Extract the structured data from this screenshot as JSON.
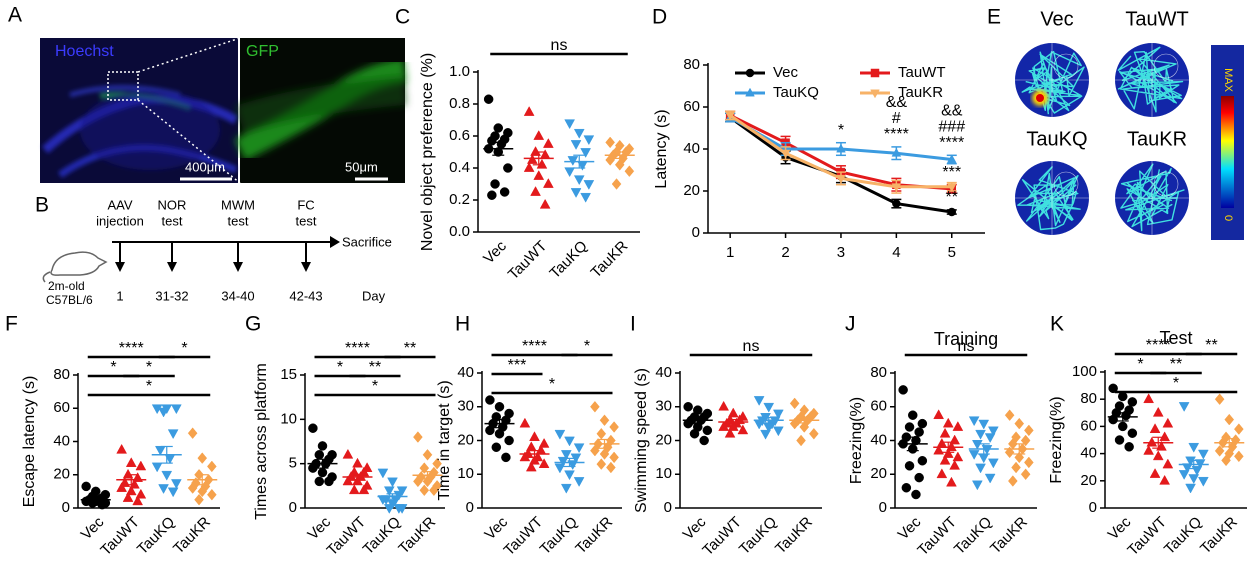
{
  "chart_data": [
    {
      "type": "dotplot",
      "panel_label": "C",
      "ylabel": "Novel object preference (%)",
      "categories": [
        "Vec",
        "TauWT",
        "TauKQ",
        "TauKR"
      ],
      "groups": [
        {
          "color": "#000000",
          "marker": "circle",
          "values": [
            0.83,
            0.65,
            0.62,
            0.6,
            0.58,
            0.57,
            0.55,
            0.52,
            0.5,
            0.4,
            0.3,
            0.25,
            0.23
          ],
          "mean": 0.52,
          "error": 0.04
        },
        {
          "color": "#e31a1c",
          "marker": "triangle-up",
          "values": [
            0.75,
            0.6,
            0.55,
            0.5,
            0.48,
            0.45,
            0.42,
            0.4,
            0.35,
            0.3,
            0.25,
            0.17
          ],
          "mean": 0.46,
          "error": 0.04
        },
        {
          "color": "#3b9be0",
          "marker": "triangle-down",
          "values": [
            0.68,
            0.62,
            0.58,
            0.55,
            0.5,
            0.45,
            0.42,
            0.38,
            0.33,
            0.3,
            0.25,
            0.22
          ],
          "mean": 0.44,
          "error": 0.04
        },
        {
          "color": "#f6a24c",
          "marker": "diamond",
          "values": [
            0.56,
            0.54,
            0.52,
            0.5,
            0.5,
            0.48,
            0.46,
            0.45,
            0.42,
            0.38,
            0.3
          ],
          "mean": 0.48,
          "error": 0.02
        }
      ],
      "ylim": [
        0,
        1
      ],
      "yticks": [
        {
          "value": 0,
          "label": "0.0"
        },
        {
          "value": 0.2,
          "label": "0.2"
        },
        {
          "value": 0.4,
          "label": "0.4"
        },
        {
          "value": 0.6,
          "label": "0.6"
        },
        {
          "value": 0.8,
          "label": "0.8"
        },
        {
          "value": 1,
          "label": "1.0"
        }
      ],
      "brackets": [
        {
          "from": 0,
          "to": 3,
          "label": "ns"
        }
      ]
    },
    {
      "type": "line",
      "panel_label": "D",
      "ylabel": "Latency (s)",
      "x": [
        1,
        2,
        3,
        4,
        5
      ],
      "xlim": [
        0.6,
        5.6
      ],
      "xticks": [
        1,
        2,
        3,
        4,
        5
      ],
      "ylim": [
        0,
        80
      ],
      "yticks": [
        0,
        20,
        40,
        60,
        80
      ],
      "legend": "top-right",
      "series": [
        {
          "name": "Vec",
          "color": "#000000",
          "marker": "circle",
          "values": [
            55,
            36,
            27,
            14,
            10
          ],
          "errors": [
            2,
            3,
            3,
            2,
            1
          ]
        },
        {
          "name": "TauWT",
          "color": "#e31a1c",
          "marker": "square",
          "values": [
            56,
            43,
            29,
            23,
            21
          ],
          "errors": [
            2,
            3,
            3,
            3,
            2
          ]
        },
        {
          "name": "TauKQ",
          "color": "#3b9be0",
          "marker": "triangle-up",
          "values": [
            55,
            40,
            40,
            38,
            35
          ],
          "errors": [
            2,
            3,
            3,
            3,
            2
          ]
        },
        {
          "name": "TauKR",
          "color": "#f7b267",
          "marker": "triangle-down",
          "values": [
            56,
            38,
            26,
            22,
            22
          ],
          "errors": [
            2,
            3,
            3,
            3,
            2
          ]
        }
      ],
      "annotations": [
        {
          "x": 3,
          "series": 2,
          "labels": [
            "*"
          ]
        },
        {
          "x": 4,
          "series": 2,
          "labels": [
            "&&",
            "#",
            "****"
          ]
        },
        {
          "x": 5,
          "series": 2,
          "labels": [
            "&&",
            "###",
            "****"
          ]
        },
        {
          "x": 5,
          "series": 1,
          "labels": [
            "***"
          ]
        },
        {
          "x": 5,
          "series": 0,
          "labels": [
            "**"
          ]
        }
      ]
    },
    {
      "type": "dotplot",
      "panel_label": "F",
      "ylabel": "Escape latency (s)",
      "categories": [
        "Vec",
        "TauWT",
        "TauKQ",
        "TauKR"
      ],
      "groups": [
        {
          "color": "#000000",
          "marker": "circle",
          "values": [
            13,
            10,
            8,
            7,
            6,
            5,
            5,
            4,
            4,
            3,
            3,
            2
          ],
          "mean": 5,
          "error": 1
        },
        {
          "color": "#e31a1c",
          "marker": "triangle-up",
          "values": [
            35,
            27,
            25,
            20,
            18,
            15,
            14,
            12,
            10,
            8,
            6,
            4
          ],
          "mean": 17,
          "error": 3
        },
        {
          "color": "#3b9be0",
          "marker": "triangle-down",
          "values": [
            60,
            60,
            60,
            58,
            45,
            35,
            30,
            25,
            20,
            15,
            12,
            10
          ],
          "mean": 32,
          "error": 5
        },
        {
          "color": "#f6a24c",
          "marker": "diamond",
          "values": [
            45,
            30,
            25,
            20,
            17,
            15,
            13,
            12,
            10,
            8,
            5
          ],
          "mean": 17,
          "error": 3
        }
      ],
      "ylim": [
        0,
        80
      ],
      "yticks": [
        0,
        20,
        40,
        60,
        80
      ],
      "brackets": [
        {
          "from": 0,
          "to": 2,
          "label": "****"
        },
        {
          "from": 0,
          "to": 1,
          "label": "*"
        },
        {
          "from": 1,
          "to": 2,
          "label": "*"
        },
        {
          "from": 2,
          "to": 3,
          "label": "*"
        },
        {
          "from": 0,
          "to": 3,
          "label": "*"
        }
      ]
    },
    {
      "type": "dotplot",
      "panel_label": "G",
      "ylabel": "Times across platform",
      "categories": [
        "Vec",
        "TauWT",
        "TauKQ",
        "TauKR"
      ],
      "groups": [
        {
          "color": "#000000",
          "marker": "circle",
          "values": [
            9,
            7,
            6,
            6,
            5.5,
            5,
            5,
            4.5,
            4,
            3.5,
            3,
            3
          ],
          "mean": 5,
          "error": 0.5
        },
        {
          "color": "#e31a1c",
          "marker": "triangle-up",
          "values": [
            6,
            5,
            4.5,
            4,
            4,
            3.5,
            3.5,
            3,
            3,
            2.5,
            2,
            2
          ],
          "mean": 3.5,
          "error": 0.3
        },
        {
          "color": "#3b9be0",
          "marker": "triangle-down",
          "values": [
            4,
            3,
            2,
            2,
            1.5,
            1,
            1,
            1,
            0.5,
            0,
            0,
            0
          ],
          "mean": 1.3,
          "error": 0.3
        },
        {
          "color": "#f6a24c",
          "marker": "diamond",
          "values": [
            8,
            6,
            5,
            4.5,
            4,
            3.5,
            3.5,
            3,
            3,
            2.5,
            2,
            2
          ],
          "mean": 3.7,
          "error": 0.4
        }
      ],
      "ylim": [
        0,
        15
      ],
      "yticks": [
        0,
        5,
        10,
        15
      ],
      "brackets": [
        {
          "from": 0,
          "to": 2,
          "label": "****"
        },
        {
          "from": 0,
          "to": 1,
          "label": "*"
        },
        {
          "from": 1,
          "to": 2,
          "label": "**"
        },
        {
          "from": 2,
          "to": 3,
          "label": "**"
        },
        {
          "from": 0,
          "to": 3,
          "label": "*"
        }
      ]
    },
    {
      "type": "dotplot",
      "panel_label": "H",
      "ylabel": "Time in target (s)",
      "categories": [
        "Vec",
        "TauWT",
        "TauKQ",
        "TauKR"
      ],
      "groups": [
        {
          "color": "#000000",
          "marker": "circle",
          "values": [
            32,
            30,
            28,
            27,
            26,
            25,
            24,
            23,
            22,
            20,
            18,
            15
          ],
          "mean": 25,
          "error": 1.2
        },
        {
          "color": "#e31a1c",
          "marker": "triangle-up",
          "values": [
            25,
            21,
            19,
            18,
            17,
            16,
            15,
            15,
            14,
            13,
            12
          ],
          "mean": 16,
          "error": 1
        },
        {
          "color": "#3b9be0",
          "marker": "triangle-down",
          "values": [
            22,
            20,
            18,
            16,
            15,
            14,
            13,
            12,
            10,
            8,
            6
          ],
          "mean": 13.5,
          "error": 1.2
        },
        {
          "color": "#f6a24c",
          "marker": "diamond",
          "values": [
            30,
            26,
            24,
            22,
            20,
            19,
            18,
            17,
            16,
            15,
            13,
            12
          ],
          "mean": 19,
          "error": 1.3
        }
      ],
      "ylim": [
        0,
        40
      ],
      "yticks": [
        0,
        10,
        20,
        30,
        40
      ],
      "brackets": [
        {
          "from": 0,
          "to": 2,
          "label": "****"
        },
        {
          "from": 0,
          "to": 1,
          "label": "***"
        },
        {
          "from": 2,
          "to": 3,
          "label": "*"
        },
        {
          "from": 0,
          "to": 3,
          "label": "*"
        }
      ]
    },
    {
      "type": "dotplot",
      "panel_label": "I",
      "ylabel": "Swimming speed (s)",
      "categories": [
        "Vec",
        "TauWT",
        "TauKQ",
        "TauKR"
      ],
      "groups": [
        {
          "color": "#000000",
          "marker": "circle",
          "values": [
            30,
            29,
            28,
            27,
            27,
            26,
            26,
            25,
            24,
            23,
            22,
            20
          ],
          "mean": 26,
          "error": 0.8
        },
        {
          "color": "#e31a1c",
          "marker": "triangle-up",
          "values": [
            30,
            28,
            27,
            26,
            26,
            25,
            25,
            24,
            24,
            23,
            22
          ],
          "mean": 25.5,
          "error": 0.7
        },
        {
          "color": "#3b9be0",
          "marker": "triangle-down",
          "values": [
            32,
            30,
            28,
            27,
            26,
            26,
            25,
            25,
            24,
            23,
            22
          ],
          "mean": 26,
          "error": 0.8
        },
        {
          "color": "#f6a24c",
          "marker": "diamond",
          "values": [
            31,
            29,
            28,
            27,
            27,
            26,
            26,
            25,
            24,
            22,
            20
          ],
          "mean": 26,
          "error": 0.8
        }
      ],
      "ylim": [
        0,
        40
      ],
      "yticks": [
        0,
        10,
        20,
        30,
        40
      ],
      "brackets": [
        {
          "from": 0,
          "to": 3,
          "label": "ns"
        }
      ]
    },
    {
      "type": "dotplot",
      "panel_label": "J",
      "title": "Training",
      "ylabel": "Freezing(%)",
      "categories": [
        "Vec",
        "TauWT",
        "TauKQ",
        "TauKR"
      ],
      "groups": [
        {
          "color": "#000000",
          "marker": "circle",
          "values": [
            70,
            55,
            50,
            48,
            45,
            42,
            40,
            38,
            35,
            28,
            25,
            18,
            12,
            8
          ],
          "mean": 38,
          "error": 4
        },
        {
          "color": "#e31a1c",
          "marker": "triangle-up",
          "values": [
            55,
            50,
            48,
            44,
            40,
            38,
            36,
            34,
            32,
            30,
            28,
            25,
            20,
            15
          ],
          "mean": 36,
          "error": 3
        },
        {
          "color": "#3b9be0",
          "marker": "triangle-down",
          "values": [
            52,
            50,
            46,
            44,
            42,
            38,
            35,
            32,
            30,
            27,
            24,
            18,
            14
          ],
          "mean": 35,
          "error": 3
        },
        {
          "color": "#f6a24c",
          "marker": "diamond",
          "values": [
            55,
            50,
            46,
            42,
            40,
            38,
            35,
            33,
            30,
            27,
            24,
            20,
            16
          ],
          "mean": 35,
          "error": 3
        }
      ],
      "ylim": [
        0,
        80
      ],
      "yticks": [
        0,
        20,
        40,
        60,
        80
      ],
      "brackets": [
        {
          "from": 0,
          "to": 3,
          "label": "ns"
        }
      ]
    },
    {
      "type": "dotplot",
      "panel_label": "K",
      "title": "Test",
      "ylabel": "Freezing(%)",
      "categories": [
        "Vec",
        "TauWT",
        "TauKQ",
        "TauKR"
      ],
      "groups": [
        {
          "color": "#000000",
          "marker": "circle",
          "values": [
            88,
            82,
            78,
            75,
            72,
            70,
            68,
            65,
            60,
            55,
            50,
            45
          ],
          "mean": 67,
          "error": 3
        },
        {
          "color": "#e31a1c",
          "marker": "triangle-up",
          "values": [
            80,
            70,
            62,
            58,
            52,
            48,
            45,
            42,
            38,
            32,
            25,
            20
          ],
          "mean": 48,
          "error": 4
        },
        {
          "color": "#3b9be0",
          "marker": "triangle-down",
          "values": [
            75,
            45,
            40,
            35,
            33,
            30,
            28,
            25,
            22,
            20,
            15
          ],
          "mean": 32,
          "error": 3
        },
        {
          "color": "#f6a24c",
          "marker": "diamond",
          "values": [
            80,
            65,
            58,
            52,
            50,
            48,
            45,
            42,
            40,
            38,
            35
          ],
          "mean": 48,
          "error": 3
        }
      ],
      "ylim": [
        0,
        100
      ],
      "yticks": [
        0,
        20,
        40,
        60,
        80,
        100
      ],
      "brackets": [
        {
          "from": 0,
          "to": 2,
          "label": "****"
        },
        {
          "from": 0,
          "to": 1,
          "label": "*"
        },
        {
          "from": 1,
          "to": 2,
          "label": "**"
        },
        {
          "from": 2,
          "to": 3,
          "label": "**"
        },
        {
          "from": 0,
          "to": 3,
          "label": "*"
        }
      ]
    }
  ],
  "panel_a": {
    "label": "A",
    "left_stain": "Hoechst",
    "right_stain": "GFP",
    "scale_left": "400μm",
    "scale_right": "50μm"
  },
  "panel_b": {
    "label": "B",
    "mouse": [
      "2m-old",
      "C57BL/6"
    ],
    "events": [
      {
        "name": [
          "AAV",
          "injection"
        ],
        "day": "1"
      },
      {
        "name": [
          "NOR",
          "test"
        ],
        "day": "31-32"
      },
      {
        "name": [
          "MWM",
          "test"
        ],
        "day": "34-40"
      },
      {
        "name": [
          "FC",
          "test"
        ],
        "day": "42-43"
      }
    ],
    "end": "Sacrifice",
    "day_label": "Day"
  },
  "panel_e": {
    "label": "E",
    "maps": [
      "Vec",
      "TauWT",
      "TauKQ",
      "TauKR"
    ],
    "colorbar_max": "MAX",
    "colorbar_min": "0"
  }
}
